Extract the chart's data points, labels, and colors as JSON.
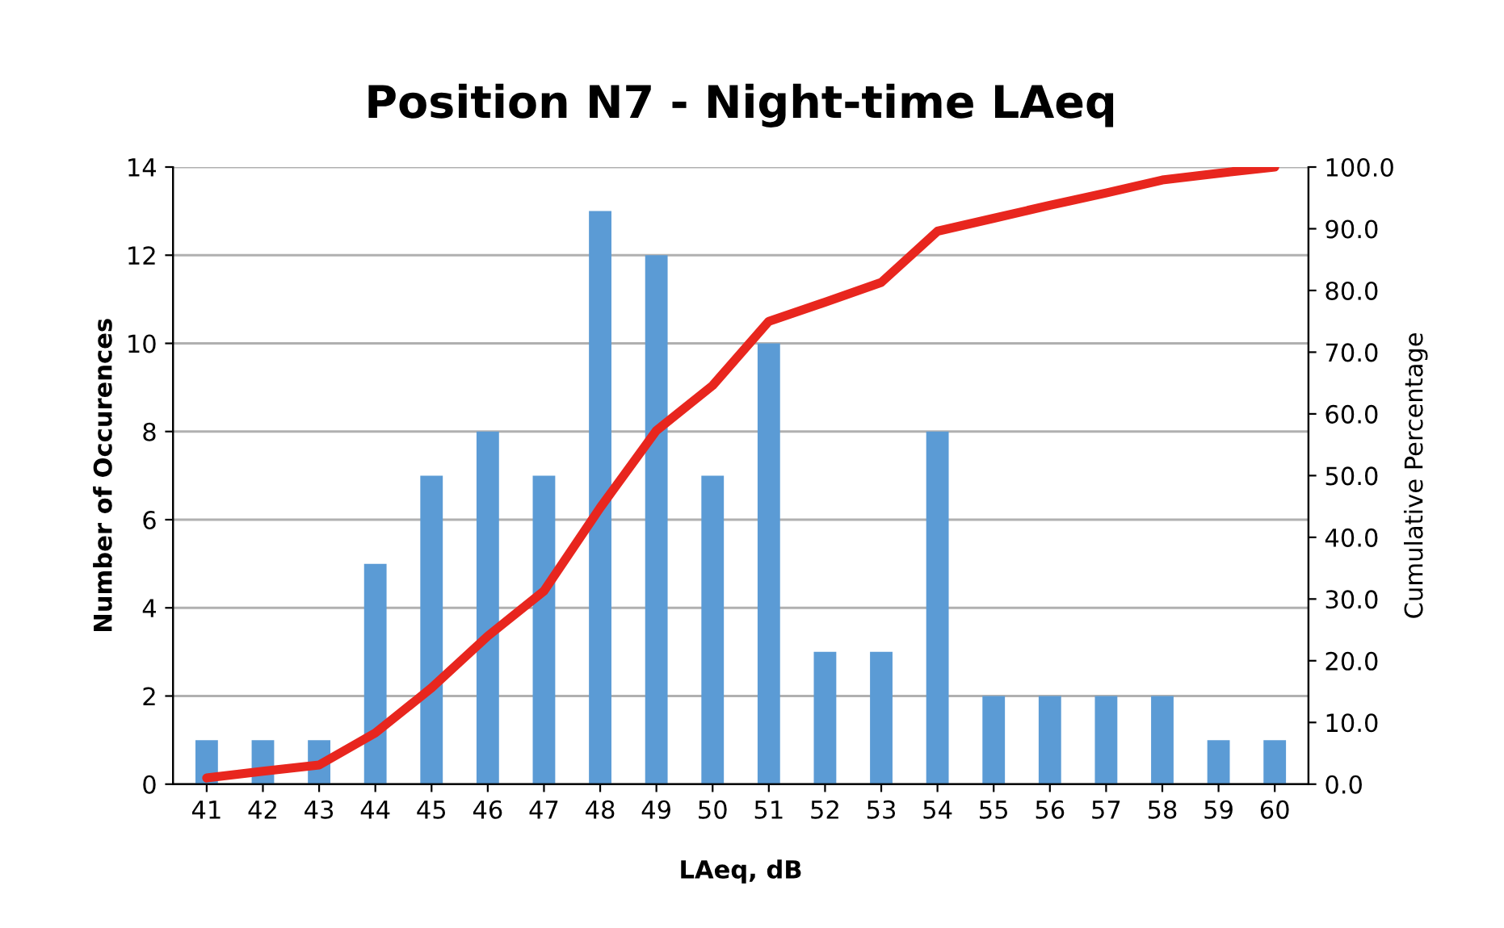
{
  "chart_data": {
    "type": "bar",
    "title": "Position N7 - Night-time LAeq",
    "xlabel": "LAeq, dB",
    "ylabel": "Number of Occurences",
    "y2label": "Cumulative Percentage",
    "categories": [
      "41",
      "42",
      "43",
      "44",
      "45",
      "46",
      "47",
      "48",
      "49",
      "50",
      "51",
      "52",
      "53",
      "54",
      "55",
      "56",
      "57",
      "58",
      "59",
      "60"
    ],
    "series": [
      {
        "color": "#5b9bd5",
        "values": [
          1,
          1,
          1,
          5,
          7,
          8,
          7,
          13,
          12,
          7,
          10,
          3,
          3,
          8,
          2,
          2,
          2,
          2,
          1,
          1
        ]
      },
      {
        "type": "line",
        "axis": "y2",
        "color": "#e8261e",
        "line_style": "solid",
        "marker": "none",
        "values": [
          1.0,
          2.1,
          3.1,
          8.3,
          15.6,
          24.0,
          31.3,
          44.8,
          57.3,
          64.6,
          75.0,
          78.1,
          81.3,
          89.6,
          91.7,
          93.8,
          95.8,
          97.9,
          99.0,
          100.0
        ]
      }
    ],
    "ylim": [
      0,
      14
    ],
    "yticks": [
      0,
      2,
      4,
      6,
      8,
      10,
      12,
      14
    ],
    "y2lim": [
      0,
      100
    ],
    "y2ticks": [
      {
        "value": 0,
        "label": "0.0"
      },
      {
        "value": 10,
        "label": "10.0"
      },
      {
        "value": 20,
        "label": "20.0"
      },
      {
        "value": 30,
        "label": "30.0"
      },
      {
        "value": 40,
        "label": "40.0"
      },
      {
        "value": 50,
        "label": "50.0"
      },
      {
        "value": 60,
        "label": "60.0"
      },
      {
        "value": 70,
        "label": "70.0"
      },
      {
        "value": 80,
        "label": "80.0"
      },
      {
        "value": 90,
        "label": "90.0"
      },
      {
        "value": 100,
        "label": "100.0"
      }
    ],
    "grid": "y",
    "legend": false
  }
}
